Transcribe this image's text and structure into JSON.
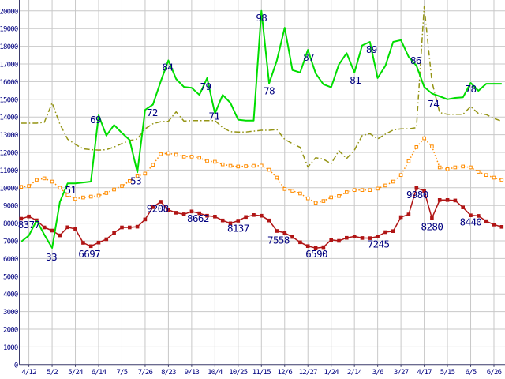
{
  "chart_data": {
    "type": "line",
    "title": "",
    "xlabel": "",
    "ylabel": "",
    "ylim": [
      0,
      20000
    ],
    "y_tick_step": 1000,
    "grid": true,
    "legend": "none",
    "colors": {
      "background": "#ffffff",
      "grid": "#c8c8c8",
      "axis": "#3a3a6a",
      "tick_text": "#000080",
      "annotation_text": "#000080"
    },
    "y_tick_labels": [
      "0",
      "1000",
      "2000",
      "3000",
      "4000",
      "5000",
      "6000",
      "7000",
      "8000",
      "9000",
      "10000",
      "11000",
      "12000",
      "13000",
      "14000",
      "15000",
      "16000",
      "17000",
      "18000",
      "19000",
      "20000"
    ],
    "x_tick_labels": [
      "4/12",
      "5/2",
      "5/24",
      "6/14",
      "7/5",
      "7/26",
      "8/23",
      "9/13",
      "10/4",
      "10/25",
      "11/15",
      "12/6",
      "12/27",
      "1/24",
      "2/14",
      "3/6",
      "3/27",
      "4/17",
      "5/15",
      "6/5",
      "6/26"
    ],
    "points_per_tick_interval": 3,
    "series": [
      {
        "name": "olive-dashdot",
        "color": "#949414",
        "line_style": "dash-dot",
        "marker": "none",
        "values": [
          13650,
          13650,
          13650,
          13700,
          14800,
          13600,
          12750,
          12450,
          12200,
          12150,
          12130,
          12150,
          12300,
          12500,
          12670,
          12760,
          13330,
          13620,
          13730,
          13760,
          14290,
          13770,
          13800,
          13800,
          13800,
          13800,
          13400,
          13170,
          13150,
          13150,
          13200,
          13250,
          13250,
          13290,
          12730,
          12500,
          12280,
          11170,
          11700,
          11610,
          11360,
          12100,
          11650,
          12130,
          12950,
          13060,
          12760,
          13030,
          13270,
          13330,
          13330,
          13400,
          20250,
          16000,
          14250,
          14150,
          14150,
          14150,
          14590,
          14200,
          14140,
          13920,
          13770
        ],
        "labels": []
      },
      {
        "name": "orange-dotted",
        "color": "#ff8c00",
        "line_style": "dotted",
        "marker": "square-hollow",
        "values": [
          10050,
          10100,
          10440,
          10530,
          10350,
          10000,
          9600,
          9370,
          9450,
          9500,
          9550,
          9700,
          9900,
          10100,
          10380,
          10650,
          10800,
          11300,
          11900,
          11950,
          11870,
          11760,
          11760,
          11690,
          11510,
          11470,
          11320,
          11240,
          11200,
          11220,
          11240,
          11250,
          11020,
          10570,
          9930,
          9830,
          9680,
          9400,
          9150,
          9250,
          9460,
          9530,
          9750,
          9870,
          9870,
          9870,
          9950,
          10130,
          10350,
          10720,
          11500,
          12300,
          12800,
          12330,
          11150,
          11050,
          11150,
          11200,
          11150,
          10900,
          10720,
          10570,
          10440
        ],
        "labels": []
      },
      {
        "name": "red-squares",
        "color": "#b01515",
        "line_style": "solid",
        "marker": "square-filled",
        "values": [
          8250,
          8377,
          8160,
          7760,
          7580,
          7310,
          7770,
          7670,
          6890,
          6697,
          6900,
          7090,
          7450,
          7760,
          7760,
          7800,
          8210,
          8900,
          9208,
          8755,
          8590,
          8500,
          8662,
          8560,
          8420,
          8370,
          8150,
          7990,
          8137,
          8350,
          8460,
          8420,
          8150,
          7558,
          7450,
          7220,
          6920,
          6700,
          6590,
          6640,
          7060,
          7000,
          7170,
          7250,
          7160,
          7150,
          7245,
          7490,
          7550,
          8340,
          8490,
          9980,
          9830,
          8280,
          9310,
          9310,
          9280,
          8890,
          8440,
          8410,
          8110,
          7920,
          7790
        ],
        "labels": [
          {
            "i": 1,
            "t": "8377",
            "dx": 0,
            "dy": 15
          },
          {
            "i": 9,
            "t": "6697",
            "dx": -2,
            "dy": 14
          },
          {
            "i": 18,
            "t": "9208",
            "dx": -4,
            "dy": 13
          },
          {
            "i": 22,
            "t": "8662",
            "dx": 8,
            "dy": 13
          },
          {
            "i": 28,
            "t": "8137",
            "dx": 0,
            "dy": 14
          },
          {
            "i": 33,
            "t": "7558",
            "dx": 2,
            "dy": 16
          },
          {
            "i": 38,
            "t": "6590",
            "dx": 1,
            "dy": 12
          },
          {
            "i": 46,
            "t": "7245",
            "dx": 1,
            "dy": 14
          },
          {
            "i": 51,
            "t": "9980",
            "dx": 1,
            "dy": 13
          },
          {
            "i": 53,
            "t": "8280",
            "dx": 0,
            "dy": 15
          },
          {
            "i": 58,
            "t": "8440",
            "dx": 0,
            "dy": 13
          }
        ]
      },
      {
        "name": "green-solid",
        "color": "#00dd00",
        "line_style": "solid",
        "marker": "none",
        "values": [
          6950,
          7300,
          8150,
          7350,
          6600,
          9200,
          10250,
          10250,
          10300,
          10350,
          14100,
          12950,
          13550,
          13100,
          12700,
          10870,
          14400,
          14700,
          16000,
          17200,
          16150,
          15700,
          15650,
          15250,
          16200,
          14200,
          15250,
          14800,
          13850,
          13800,
          13800,
          20000,
          15900,
          17200,
          19050,
          16650,
          16520,
          17800,
          16460,
          15850,
          15680,
          16970,
          17610,
          16520,
          18050,
          18250,
          16200,
          16900,
          18250,
          18350,
          17400,
          16900,
          15700,
          15330,
          15170,
          15000,
          15080,
          15110,
          15930,
          15480,
          15880,
          15880,
          15880
        ],
        "labels": [
          {
            "i": 4,
            "t": "33",
            "dx": -1,
            "dy": 16
          },
          {
            "i": 7,
            "t": "51",
            "dx": -6,
            "dy": 13
          },
          {
            "i": 10,
            "t": "69",
            "dx": -4,
            "dy": 10
          },
          {
            "i": 15,
            "t": "53",
            "dx": -2,
            "dy": 15
          },
          {
            "i": 16,
            "t": "72",
            "dx": 9,
            "dy": 8
          },
          {
            "i": 19,
            "t": "84",
            "dx": -1,
            "dy": 13
          },
          {
            "i": 24,
            "t": "79",
            "dx": -2,
            "dy": 15
          },
          {
            "i": 25,
            "t": "71",
            "dx": -1,
            "dy": 8
          },
          {
            "i": 31,
            "t": "98",
            "dx": 0,
            "dy": 13
          },
          {
            "i": 32,
            "t": "78",
            "dx": 0,
            "dy": 14
          },
          {
            "i": 37,
            "t": "87",
            "dx": 1,
            "dy": 14
          },
          {
            "i": 43,
            "t": "81",
            "dx": 1,
            "dy": 14
          },
          {
            "i": 45,
            "t": "89",
            "dx": 2,
            "dy": 14
          },
          {
            "i": 50,
            "t": "86",
            "dx": 9,
            "dy": 9
          },
          {
            "i": 54,
            "t": "74",
            "dx": -8,
            "dy": 14
          },
          {
            "i": 58,
            "t": "78",
            "dx": 0,
            "dy": 12
          }
        ]
      }
    ]
  }
}
